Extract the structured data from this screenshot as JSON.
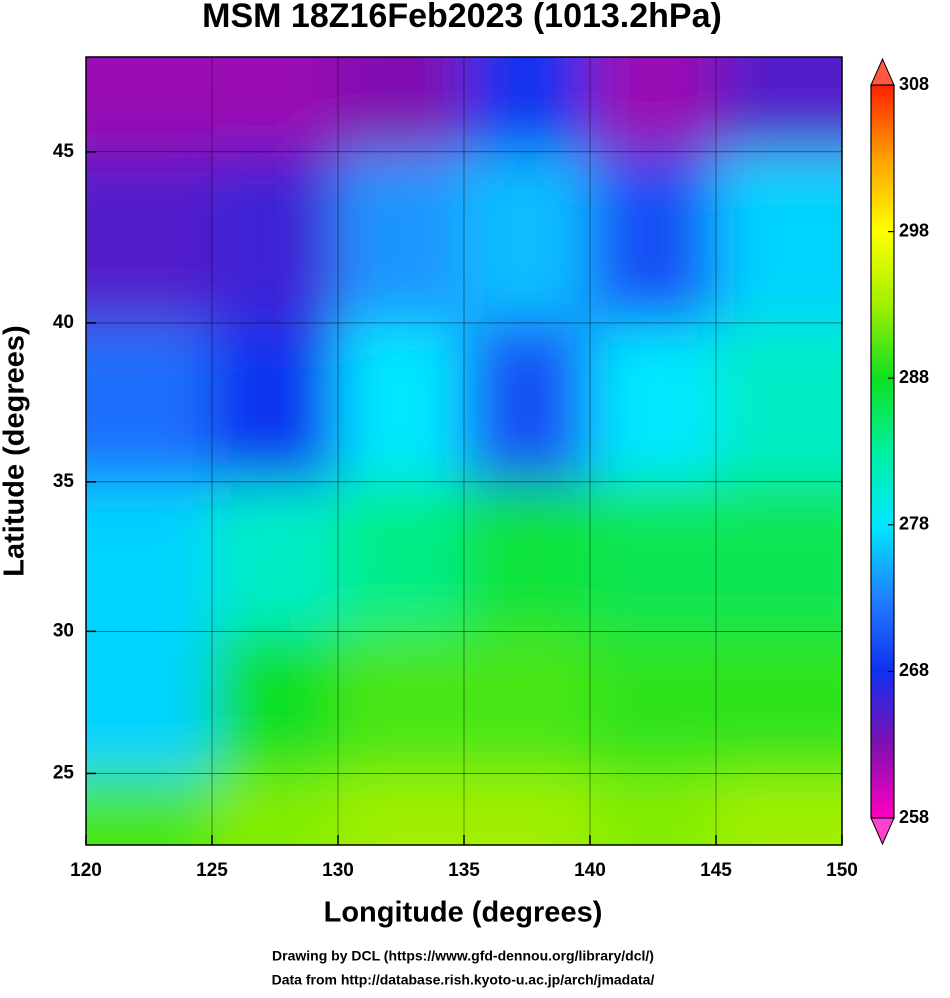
{
  "chart_data": {
    "type": "map",
    "title": "MSM 18Z16Feb2023 (1013.2hPa)",
    "x_label": "Longitude (degrees)",
    "y_label": "Latitude  (degrees)",
    "credits": [
      "Drawing by DCL (https://www.gfd-dennou.org/library/dcl/)",
      "Data from http://database.rish.kyoto-u.ac.jp/arch/jmadata/"
    ],
    "xlim": [
      120,
      150
    ],
    "ylim": [
      22.4,
      47.6
    ],
    "yscale": "mercator",
    "xticks": [
      120,
      125,
      130,
      135,
      140,
      145,
      150
    ],
    "yticks": [
      25,
      30,
      35,
      40,
      45
    ],
    "grid": true,
    "lon_edges": [
      120,
      125,
      130,
      135,
      140,
      145,
      150
    ],
    "lat_edges": [
      22.4,
      25,
      30,
      35,
      40,
      45,
      47.6
    ],
    "values": [
      [
        290,
        292,
        293,
        293,
        292,
        293
      ],
      [
        277,
        288,
        290,
        290,
        289,
        289
      ],
      [
        277,
        281,
        284,
        287,
        286,
        286
      ],
      [
        272,
        268,
        278,
        270,
        278,
        281
      ],
      [
        265,
        266,
        274,
        276,
        270,
        277
      ],
      [
        262,
        262,
        263,
        268,
        262,
        265
      ]
    ],
    "clim": [
      258,
      308
    ],
    "cticks": [
      258,
      268,
      278,
      288,
      298,
      308
    ],
    "colormap": [
      "#ff00c0",
      "#8010b0",
      "#1030f0",
      "#2080ff",
      "#00e8ff",
      "#00f0a0",
      "#10e020",
      "#a0f000",
      "#ffff00",
      "#ffa000",
      "#ff2000"
    ]
  }
}
